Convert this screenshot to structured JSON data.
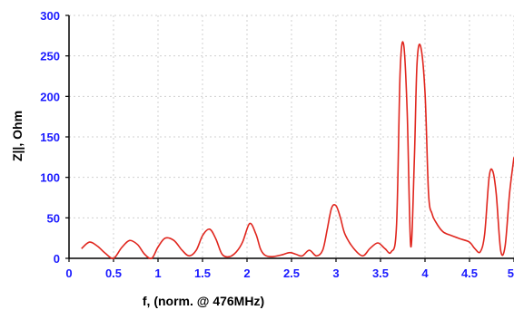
{
  "chart_data": {
    "type": "line",
    "title": "",
    "xlabel": "f, (norm. @ 476MHz)",
    "ylabel": "Z||, Ohm",
    "xlim": [
      0,
      5
    ],
    "ylim": [
      0,
      300
    ],
    "xticks": [
      0,
      0.5,
      1,
      1.5,
      2,
      2.5,
      3,
      3.5,
      4,
      4.5,
      5
    ],
    "xtick_labels": [
      "0",
      "0.5",
      "1",
      "1.5",
      "2",
      "2.5",
      "3",
      "3.5",
      "4",
      "4.5",
      "5"
    ],
    "yticks": [
      0,
      50,
      100,
      150,
      200,
      250,
      300
    ],
    "ytick_labels": [
      "0",
      "50",
      "100",
      "150",
      "200",
      "250",
      "300"
    ],
    "grid": true,
    "colors": {
      "axis_text": "#1a1aff",
      "series": "#e0261e",
      "grid": "#d0d0d0"
    },
    "series": [
      {
        "x": [
          0.14,
          0.23,
          0.32,
          0.41,
          0.5,
          0.59,
          0.68,
          0.77,
          0.85,
          0.93,
          1.0,
          1.08,
          1.18,
          1.27,
          1.35,
          1.43,
          1.5,
          1.58,
          1.65,
          1.72,
          1.8,
          1.88,
          1.95,
          2.03,
          2.1,
          2.15,
          2.2,
          2.28,
          2.38,
          2.48,
          2.55,
          2.62,
          2.7,
          2.78,
          2.85,
          2.9,
          2.95,
          3.0,
          3.05,
          3.1,
          3.2,
          3.3,
          3.38,
          3.47,
          3.55,
          3.62,
          3.68,
          3.72,
          3.76,
          3.8,
          3.84,
          3.88,
          3.91,
          3.95,
          4.0,
          4.04,
          4.08,
          4.12,
          4.2,
          4.3,
          4.4,
          4.5,
          4.56,
          4.62,
          4.67,
          4.72,
          4.76,
          4.8,
          4.85,
          4.9,
          4.95,
          5.0
        ],
        "values": [
          12,
          20,
          15,
          6,
          0,
          13,
          22,
          17,
          5,
          0,
          14,
          25,
          22,
          10,
          3,
          10,
          28,
          36,
          24,
          5,
          2,
          8,
          20,
          43,
          30,
          12,
          4,
          2,
          4,
          7,
          5,
          3,
          10,
          3,
          10,
          35,
          62,
          65,
          50,
          30,
          12,
          3,
          12,
          19,
          12,
          8,
          40,
          230,
          264,
          180,
          15,
          120,
          240,
          262,
          205,
          80,
          55,
          45,
          33,
          28,
          24,
          20,
          12,
          8,
          30,
          100,
          108,
          80,
          10,
          15,
          80,
          125
        ]
      }
    ]
  }
}
